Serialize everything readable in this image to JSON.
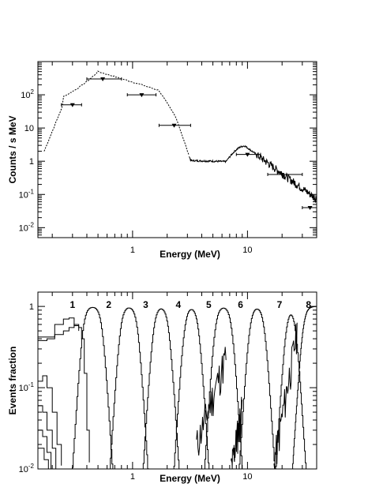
{
  "chart_data": [
    {
      "type": "line",
      "title": "",
      "xlabel": "Energy (MeV)",
      "ylabel": "Counts / s MeV",
      "x_scale": "log",
      "y_scale": "log",
      "xlim": [
        0.15,
        40
      ],
      "ylim": [
        0.005,
        1000
      ],
      "x_tick_labels": [
        {
          "value": 1,
          "label": "1"
        },
        {
          "value": 10,
          "label": "10"
        }
      ],
      "y_tick_labels": [
        {
          "value": 0.01,
          "label": "10",
          "sup": "-2"
        },
        {
          "value": 0.1,
          "label": "10",
          "sup": "-1"
        },
        {
          "value": 1,
          "label": "1"
        },
        {
          "value": 10,
          "label": "10"
        },
        {
          "value": 100,
          "label": "10",
          "sup": "2"
        }
      ],
      "series": [
        {
          "style": "dashed",
          "x": [
            0.17,
            0.22,
            0.26,
            0.3,
            0.34,
            0.38,
            0.42,
            0.46,
            0.5,
            0.56,
            0.62,
            0.7,
            0.8,
            0.9,
            1.0,
            1.1,
            1.2,
            1.35,
            1.5,
            1.7,
            1.9,
            2.1,
            2.3,
            2.5,
            2.7,
            2.9,
            3.1
          ]
        },
        {
          "style": "solid-noisy",
          "x": [
            3.1,
            3.5,
            4.0,
            4.5,
            5.0,
            5.5,
            6.0,
            6.5,
            7.0,
            7.5,
            8.0,
            8.5,
            9.0,
            9.5,
            10.0,
            11,
            12,
            13,
            15,
            17,
            20,
            23,
            27,
            31,
            35,
            40
          ]
        }
      ],
      "points_with_errors": [
        {
          "x": 0.3,
          "xlo": 0.24,
          "xhi": 0.36,
          "y": 50
        },
        {
          "x": 0.55,
          "xlo": 0.4,
          "xhi": 0.8,
          "y": 300
        },
        {
          "x": 1.2,
          "xlo": 0.9,
          "xhi": 1.6,
          "y": 100
        },
        {
          "x": 2.3,
          "xlo": 1.7,
          "xhi": 3.2,
          "y": 12
        },
        {
          "x": 10,
          "xlo": 8,
          "xhi": 13,
          "y": 1.6
        },
        {
          "x": 20,
          "xlo": 15,
          "xhi": 30,
          "y": 0.4
        },
        {
          "x": 35,
          "xlo": 30,
          "xhi": 40,
          "y": 0.04
        }
      ]
    },
    {
      "type": "line",
      "title": "",
      "xlabel": "Energy (MeV)",
      "ylabel": "Events fraction",
      "x_scale": "log",
      "y_scale": "log",
      "xlim": [
        0.15,
        40
      ],
      "ylim": [
        0.01,
        1.5
      ],
      "x_tick_labels": [
        {
          "value": 1,
          "label": "1"
        },
        {
          "value": 10,
          "label": "10"
        }
      ],
      "y_tick_labels": [
        {
          "value": 0.01,
          "label": "10",
          "sup": "-2"
        },
        {
          "value": 0.1,
          "label": "10",
          "sup": "-1"
        },
        {
          "value": 1,
          "label": "1"
        }
      ],
      "class_labels": [
        {
          "label": "1",
          "x": 0.3
        },
        {
          "label": "2",
          "x": 0.62
        },
        {
          "label": "3",
          "x": 1.3
        },
        {
          "label": "4",
          "x": 2.5
        },
        {
          "label": "5",
          "x": 4.6
        },
        {
          "label": "6",
          "x": 8.7
        },
        {
          "label": "7",
          "x": 19
        },
        {
          "label": "8",
          "x": 34
        }
      ],
      "class_windows": [
        {
          "lo": 0.34,
          "hi": 0.58
        },
        {
          "lo": 0.72,
          "hi": 1.18
        },
        {
          "lo": 1.4,
          "hi": 2.2
        },
        {
          "lo": 2.6,
          "hi": 4.0
        },
        {
          "lo": 4.8,
          "hi": 7.8
        },
        {
          "lo": 9.6,
          "hi": 15
        },
        {
          "lo": 20,
          "hi": 28
        },
        {
          "lo": 28,
          "hi": 40
        }
      ]
    }
  ]
}
